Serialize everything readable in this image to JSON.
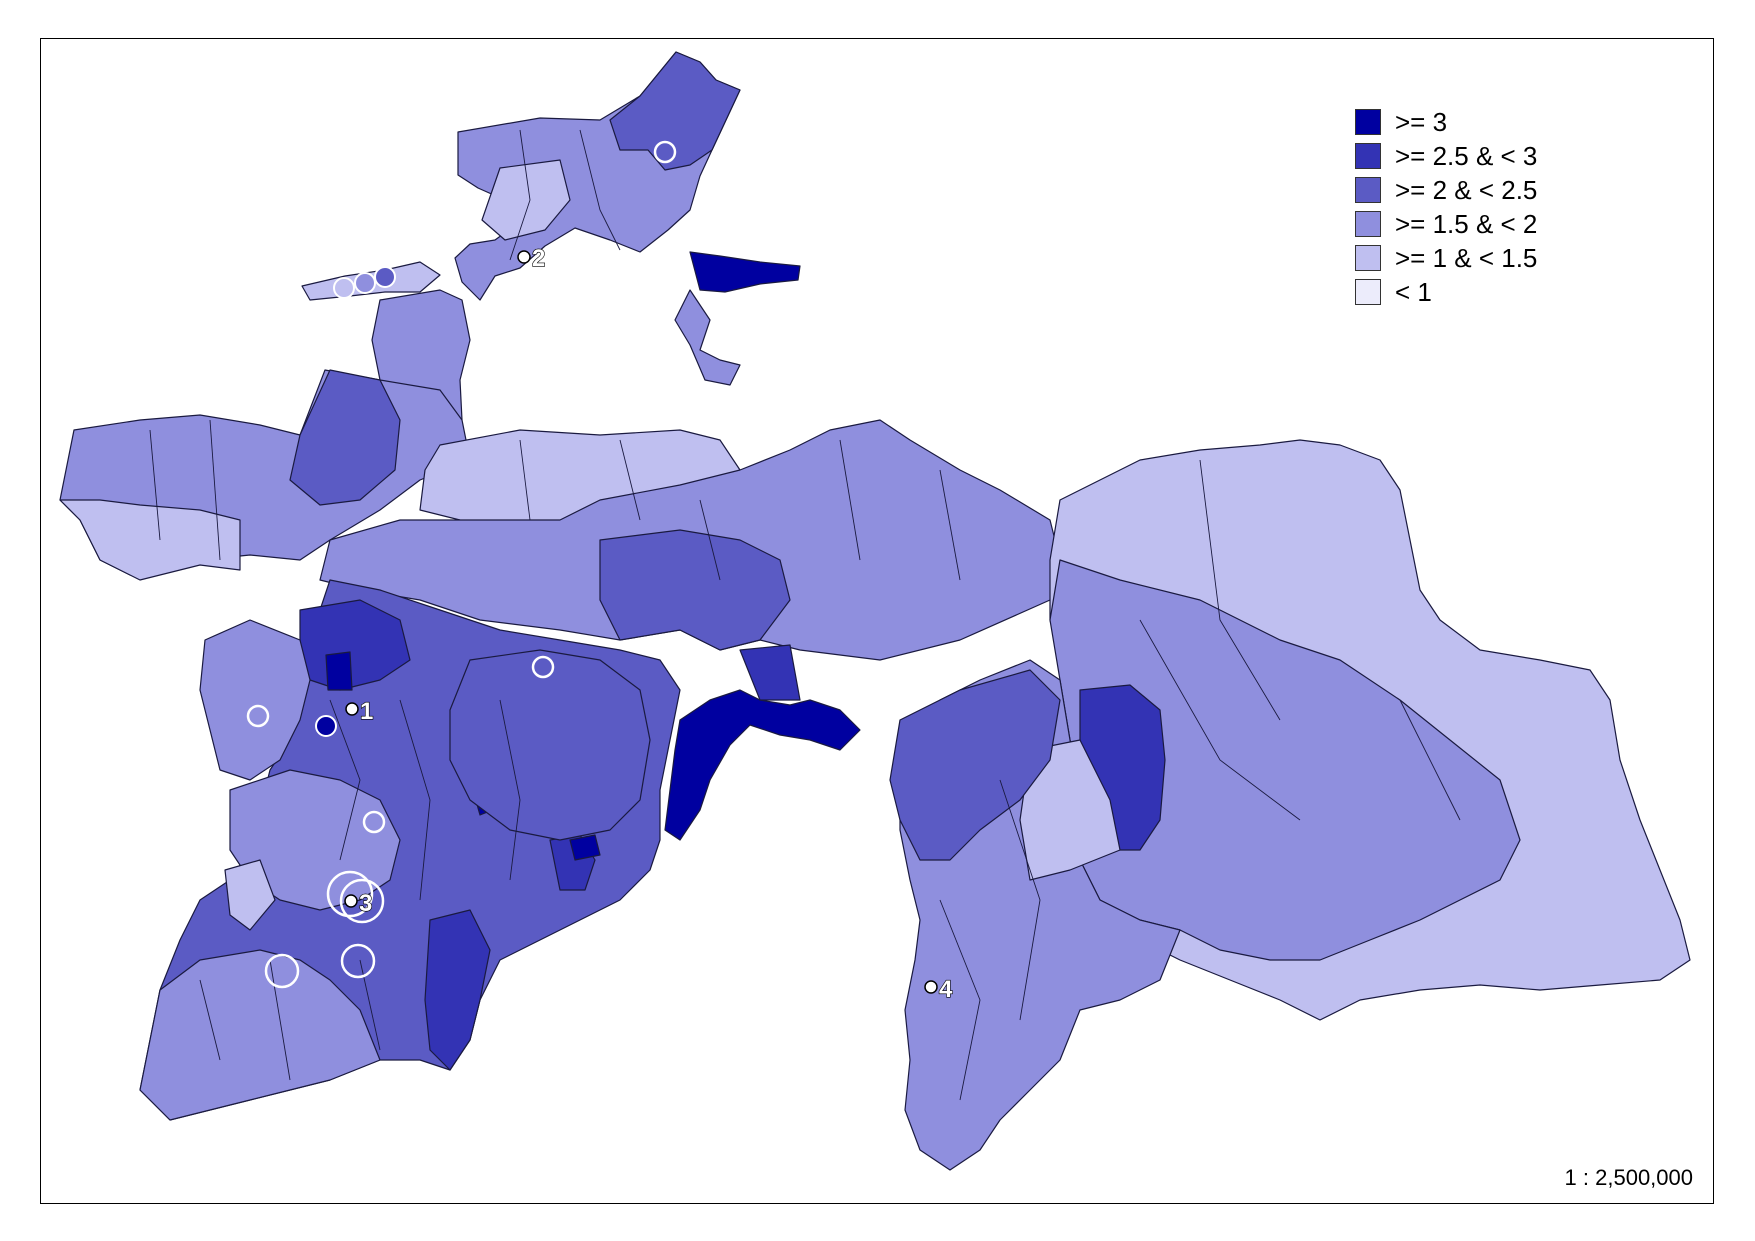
{
  "legend": {
    "items": [
      {
        "label": ">= 3",
        "color": "#0000a0"
      },
      {
        "label": ">= 2.5 & < 3",
        "color": "#3333b4"
      },
      {
        "label": ">= 2 & < 2.5",
        "color": "#5b5bc4"
      },
      {
        "label": ">= 1.5 & < 2",
        "color": "#8f8fde"
      },
      {
        "label": ">= 1 & < 1.5",
        "color": "#bfbff0"
      },
      {
        "label": "< 1",
        "color": "#ececfb"
      }
    ]
  },
  "scale": "1 : 2,500,000",
  "markers": {
    "m1": "1",
    "m2": "2",
    "m3": "3",
    "m4": "4"
  }
}
